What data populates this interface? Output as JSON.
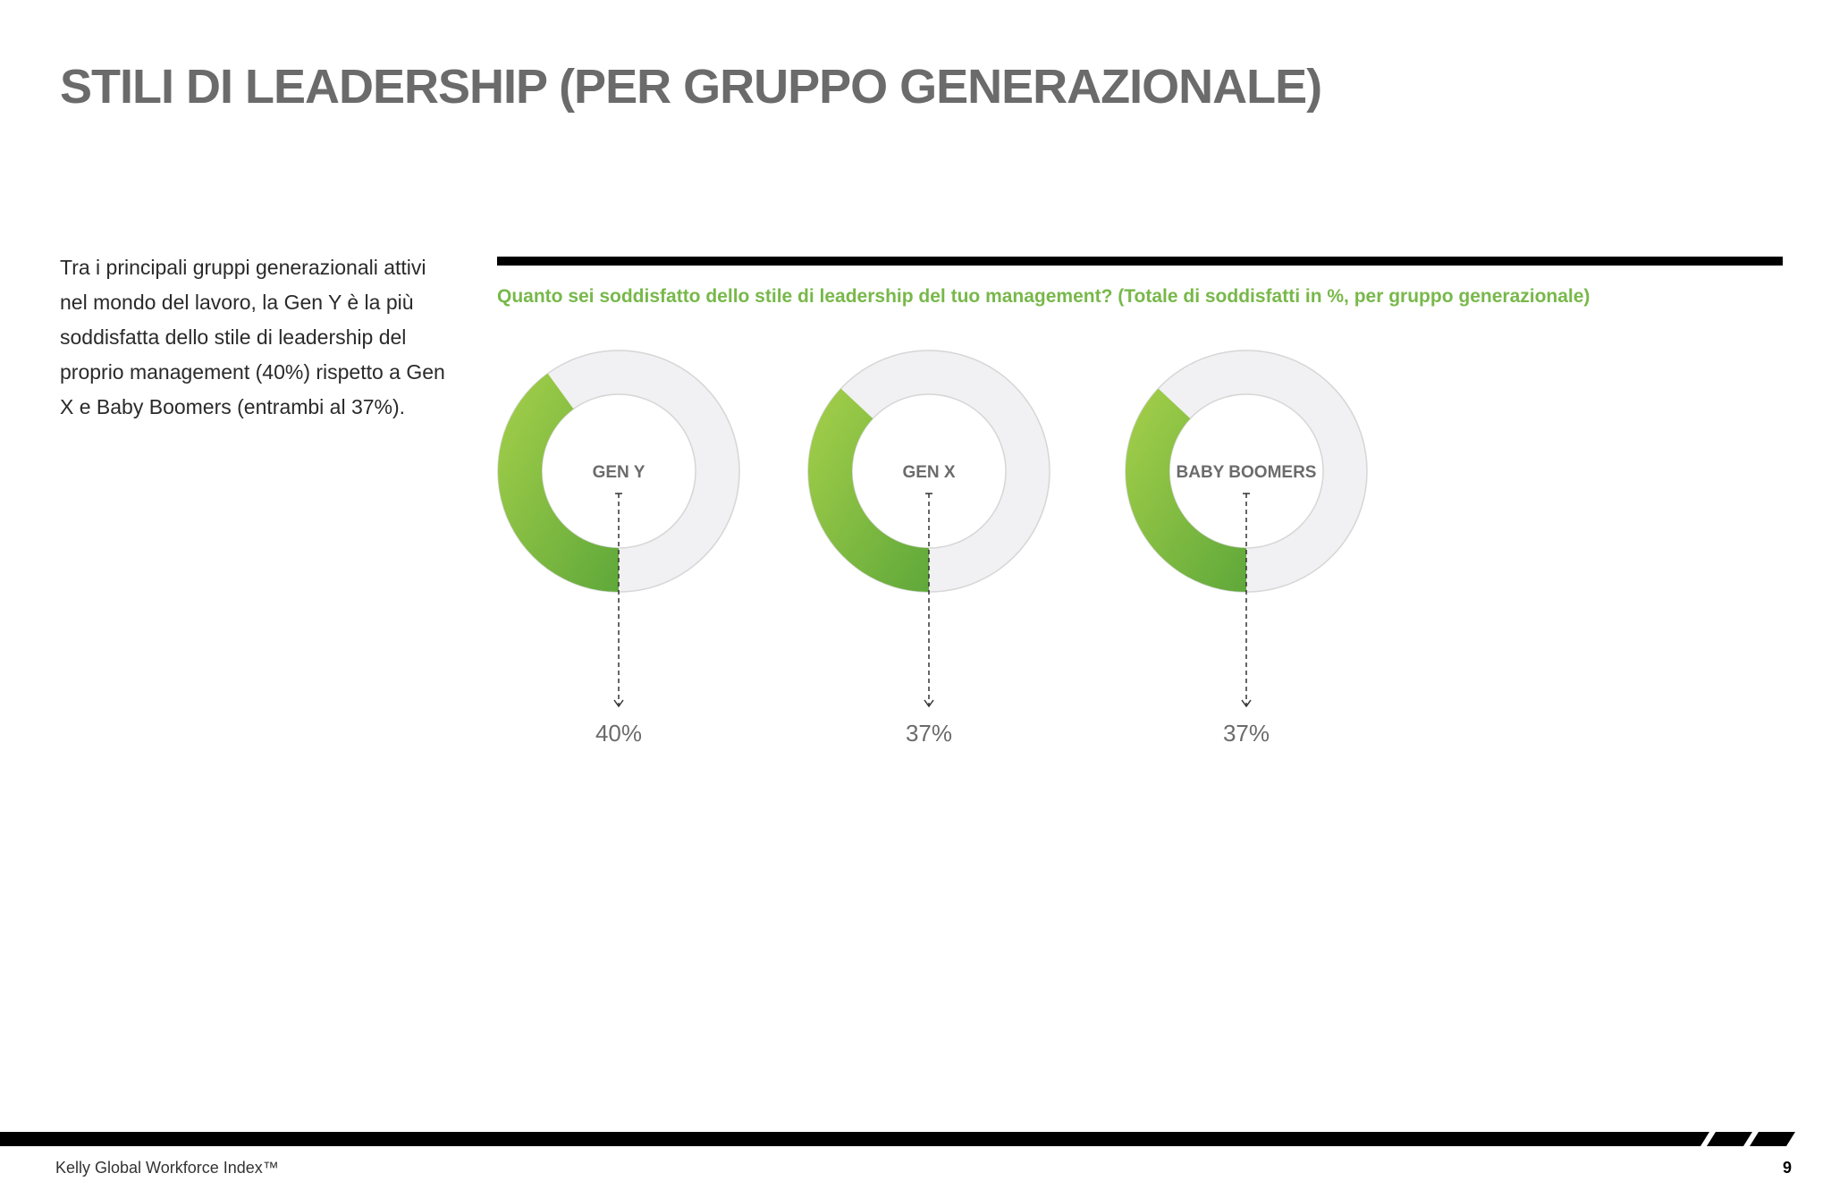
{
  "page": {
    "title": "STILI DI LEADERSHIP (PER GRUPPO GENERAZIONALE)",
    "intro": "Tra i principali gruppi generazionali attivi nel mondo del lavoro, la Gen Y è la più soddisfatta dello stile di leadership del proprio management (40%) rispetto a Gen X e Baby Boomers (entrambi al 37%).",
    "question": "Quanto sei soddisfatto dello stile di leadership del tuo management? (Totale di soddisfatti in %, per gruppo generazionale)"
  },
  "chart_data": {
    "type": "pie",
    "title": "Quanto sei soddisfatto dello stile di leadership del tuo management? (Totale di soddisfatti in %, per gruppo generazionale)",
    "categories": [
      "GEN Y",
      "GEN X",
      "BABY BOOMERS"
    ],
    "values": [
      40,
      37,
      37
    ],
    "value_labels": [
      "40%",
      "37%",
      "37%"
    ],
    "unit": "%",
    "colors": {
      "filled": "#78b84a",
      "filled_light": "#a6d04a",
      "remainder": "#f1f0f2",
      "outline": "#d6d6d6"
    }
  },
  "footer": {
    "text": "Kelly Global Workforce Index™",
    "page_number": "9"
  }
}
